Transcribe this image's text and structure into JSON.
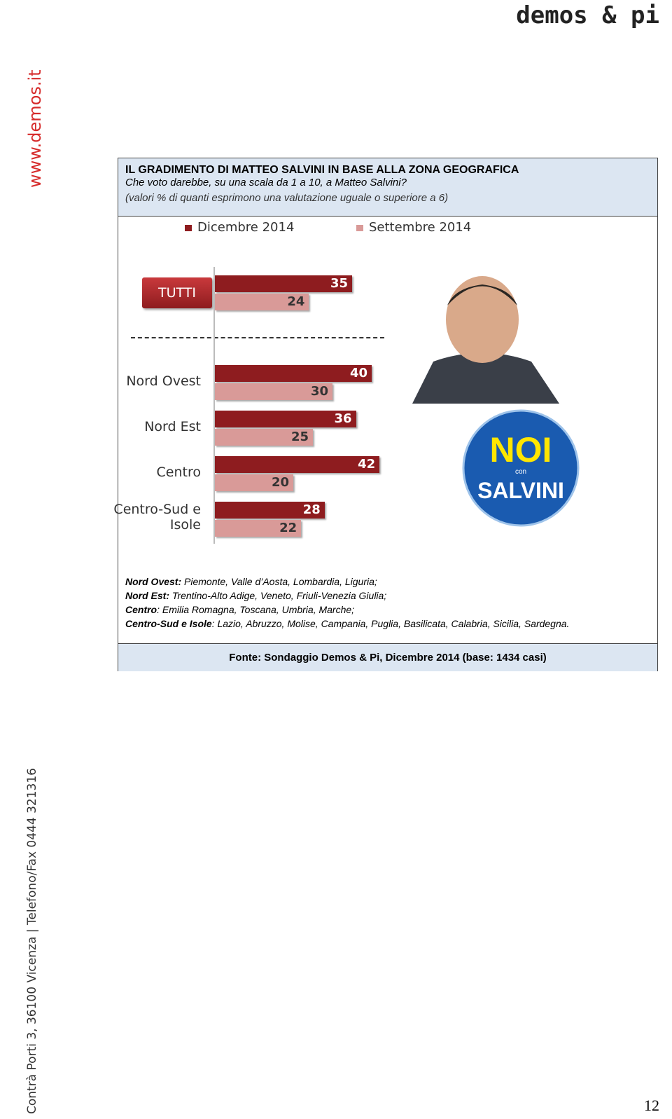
{
  "logo": "demos & pi",
  "side_url": "www.demos.it",
  "side_address": "Contrà Porti 3, 36100 Vicenza | Telefono/Fax 0444 321316",
  "header": {
    "title": "IL GRADIMENTO DI MATTEO SALVINI IN BASE ALLA ZONA GEOGRAFICA",
    "subtitle": "Che voto darebbe, su una scala da 1 a 10, a Matteo Salvini?",
    "note": "(valori % di quanti esprimono una valutazione uguale o superiore a 6)"
  },
  "chart_data": {
    "type": "bar",
    "orientation": "horizontal",
    "categories": [
      "TUTTI",
      "Nord Ovest",
      "Nord Est",
      "Centro",
      "Centro-Sud e Isole"
    ],
    "series": [
      {
        "name": "Dicembre 2014",
        "color": "#8e1c1f",
        "values": [
          35,
          40,
          36,
          42,
          28
        ]
      },
      {
        "name": "Settembre 2014",
        "color": "#d99a98",
        "values": [
          24,
          30,
          25,
          20,
          22
        ]
      }
    ]
  },
  "badge": {
    "line1": "NOI",
    "line2": "con",
    "line3": "SALVINI"
  },
  "footnotes": [
    {
      "label": "Nord Ovest:",
      "text": " Piemonte, Valle d’Aosta, Lombardia, Liguria;"
    },
    {
      "label": "Nord Est:",
      "text": " Trentino-Alto Adige, Veneto, Friuli-Venezia Giulia;"
    },
    {
      "label": "Centro",
      "text": ": Emilia Romagna, Toscana, Umbria, Marche;"
    },
    {
      "label": "Centro-Sud e Isole",
      "text": ": Lazio, Abruzzo, Molise, Campania, Puglia, Basilicata, Calabria, Sicilia, Sardegna."
    }
  ],
  "source": "Fonte: Sondaggio Demos & Pi, Dicembre 2014 (base: 1434 casi)",
  "page_number": "12"
}
